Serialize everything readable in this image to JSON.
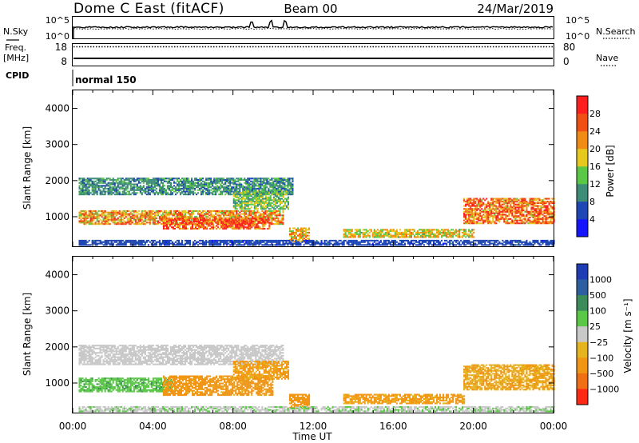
{
  "header": {
    "station": "Dome C East (fitACF)",
    "beam": "Beam 00",
    "date": "24/Mar/2019"
  },
  "summary": {
    "nsky_label": "N.Sky",
    "nsky_ticks": [
      "10^5",
      "10^0"
    ],
    "nsearch_label": "N.Search",
    "freq_label_line1": "Freq.",
    "freq_label_line2": "[MHz]",
    "freq_ticks": [
      "18",
      "8"
    ],
    "nave_label": "Nave",
    "nave_ticks": [
      "80",
      "0"
    ],
    "cpid_label": "CPID",
    "cpid_value": "normal 150"
  },
  "colors": {
    "power_scale": [
      "#1414ff",
      "#1e46b4",
      "#3c8c78",
      "#5ac846",
      "#e6c81e",
      "#f08c14",
      "#f05014",
      "#ff1e1e"
    ],
    "velocity_scale": [
      "#1e3cb4",
      "#2d5fa0",
      "#3c8c5a",
      "#5ac846",
      "#c8c8c8",
      "#e6b41e",
      "#f09614",
      "#f06e14",
      "#ff2814"
    ]
  },
  "chart_data": [
    {
      "type": "heatmap",
      "name": "power",
      "xlabel": "Time UT",
      "ylabel": "Slant Range [km]",
      "x_ticks": [
        "00:00",
        "04:00",
        "08:00",
        "12:00",
        "16:00",
        "20:00",
        "00:00"
      ],
      "y_ticks": [
        1000,
        2000,
        3000,
        4000
      ],
      "xlim_hours": [
        0,
        24
      ],
      "ylim_km": [
        180,
        4500
      ],
      "colorbar": {
        "label": "Power [dB]",
        "ticks": [
          4,
          8,
          12,
          16,
          20,
          24,
          28
        ],
        "range": [
          0,
          32
        ]
      },
      "echo_regions": [
        {
          "t": [
            0.3,
            11.0
          ],
          "r": [
            1600,
            2050
          ],
          "value": 10
        },
        {
          "t": [
            0.3,
            10.5
          ],
          "r": [
            780,
            1150
          ],
          "value": 22
        },
        {
          "t": [
            4.5,
            9.8
          ],
          "r": [
            650,
            950
          ],
          "value": 27
        },
        {
          "t": [
            8.0,
            10.8
          ],
          "r": [
            1200,
            1700
          ],
          "value": 14
        },
        {
          "t": [
            10.8,
            11.8
          ],
          "r": [
            300,
            700
          ],
          "value": 20
        },
        {
          "t": [
            13.5,
            20.0
          ],
          "r": [
            420,
            650
          ],
          "value": 18
        },
        {
          "t": [
            19.5,
            24.0
          ],
          "r": [
            800,
            1500
          ],
          "value": 24
        },
        {
          "t": [
            0.3,
            24.0
          ],
          "r": [
            200,
            330
          ],
          "value": 6
        }
      ]
    },
    {
      "type": "heatmap",
      "name": "velocity",
      "xlabel": "Time UT",
      "ylabel": "Slant Range [km]",
      "x_ticks": [
        "00:00",
        "04:00",
        "08:00",
        "12:00",
        "16:00",
        "20:00",
        "00:00"
      ],
      "y_ticks": [
        1000,
        2000,
        3000,
        4000
      ],
      "xlim_hours": [
        0,
        24
      ],
      "ylim_km": [
        180,
        4500
      ],
      "colorbar": {
        "label": "Velocity [m s⁻¹]",
        "ticks": [
          "1000",
          "500",
          "100",
          "25",
          "−25",
          "−100",
          "−500",
          "−1000"
        ]
      },
      "echo_regions": [
        {
          "t": [
            0.3,
            10.5
          ],
          "r": [
            1500,
            2050
          ],
          "value": 0
        },
        {
          "t": [
            0.3,
            5.0
          ],
          "r": [
            750,
            1150
          ],
          "value": 80
        },
        {
          "t": [
            4.5,
            10.0
          ],
          "r": [
            650,
            1200
          ],
          "value": -150
        },
        {
          "t": [
            8.0,
            10.8
          ],
          "r": [
            1100,
            1600
          ],
          "value": -120
        },
        {
          "t": [
            10.8,
            11.8
          ],
          "r": [
            300,
            700
          ],
          "value": -300
        },
        {
          "t": [
            13.5,
            19.5
          ],
          "r": [
            420,
            700
          ],
          "value": -120
        },
        {
          "t": [
            19.5,
            24.0
          ],
          "r": [
            800,
            1500
          ],
          "value": -100
        },
        {
          "t": [
            0.3,
            24.0
          ],
          "r": [
            200,
            330
          ],
          "value": 20
        }
      ]
    }
  ]
}
